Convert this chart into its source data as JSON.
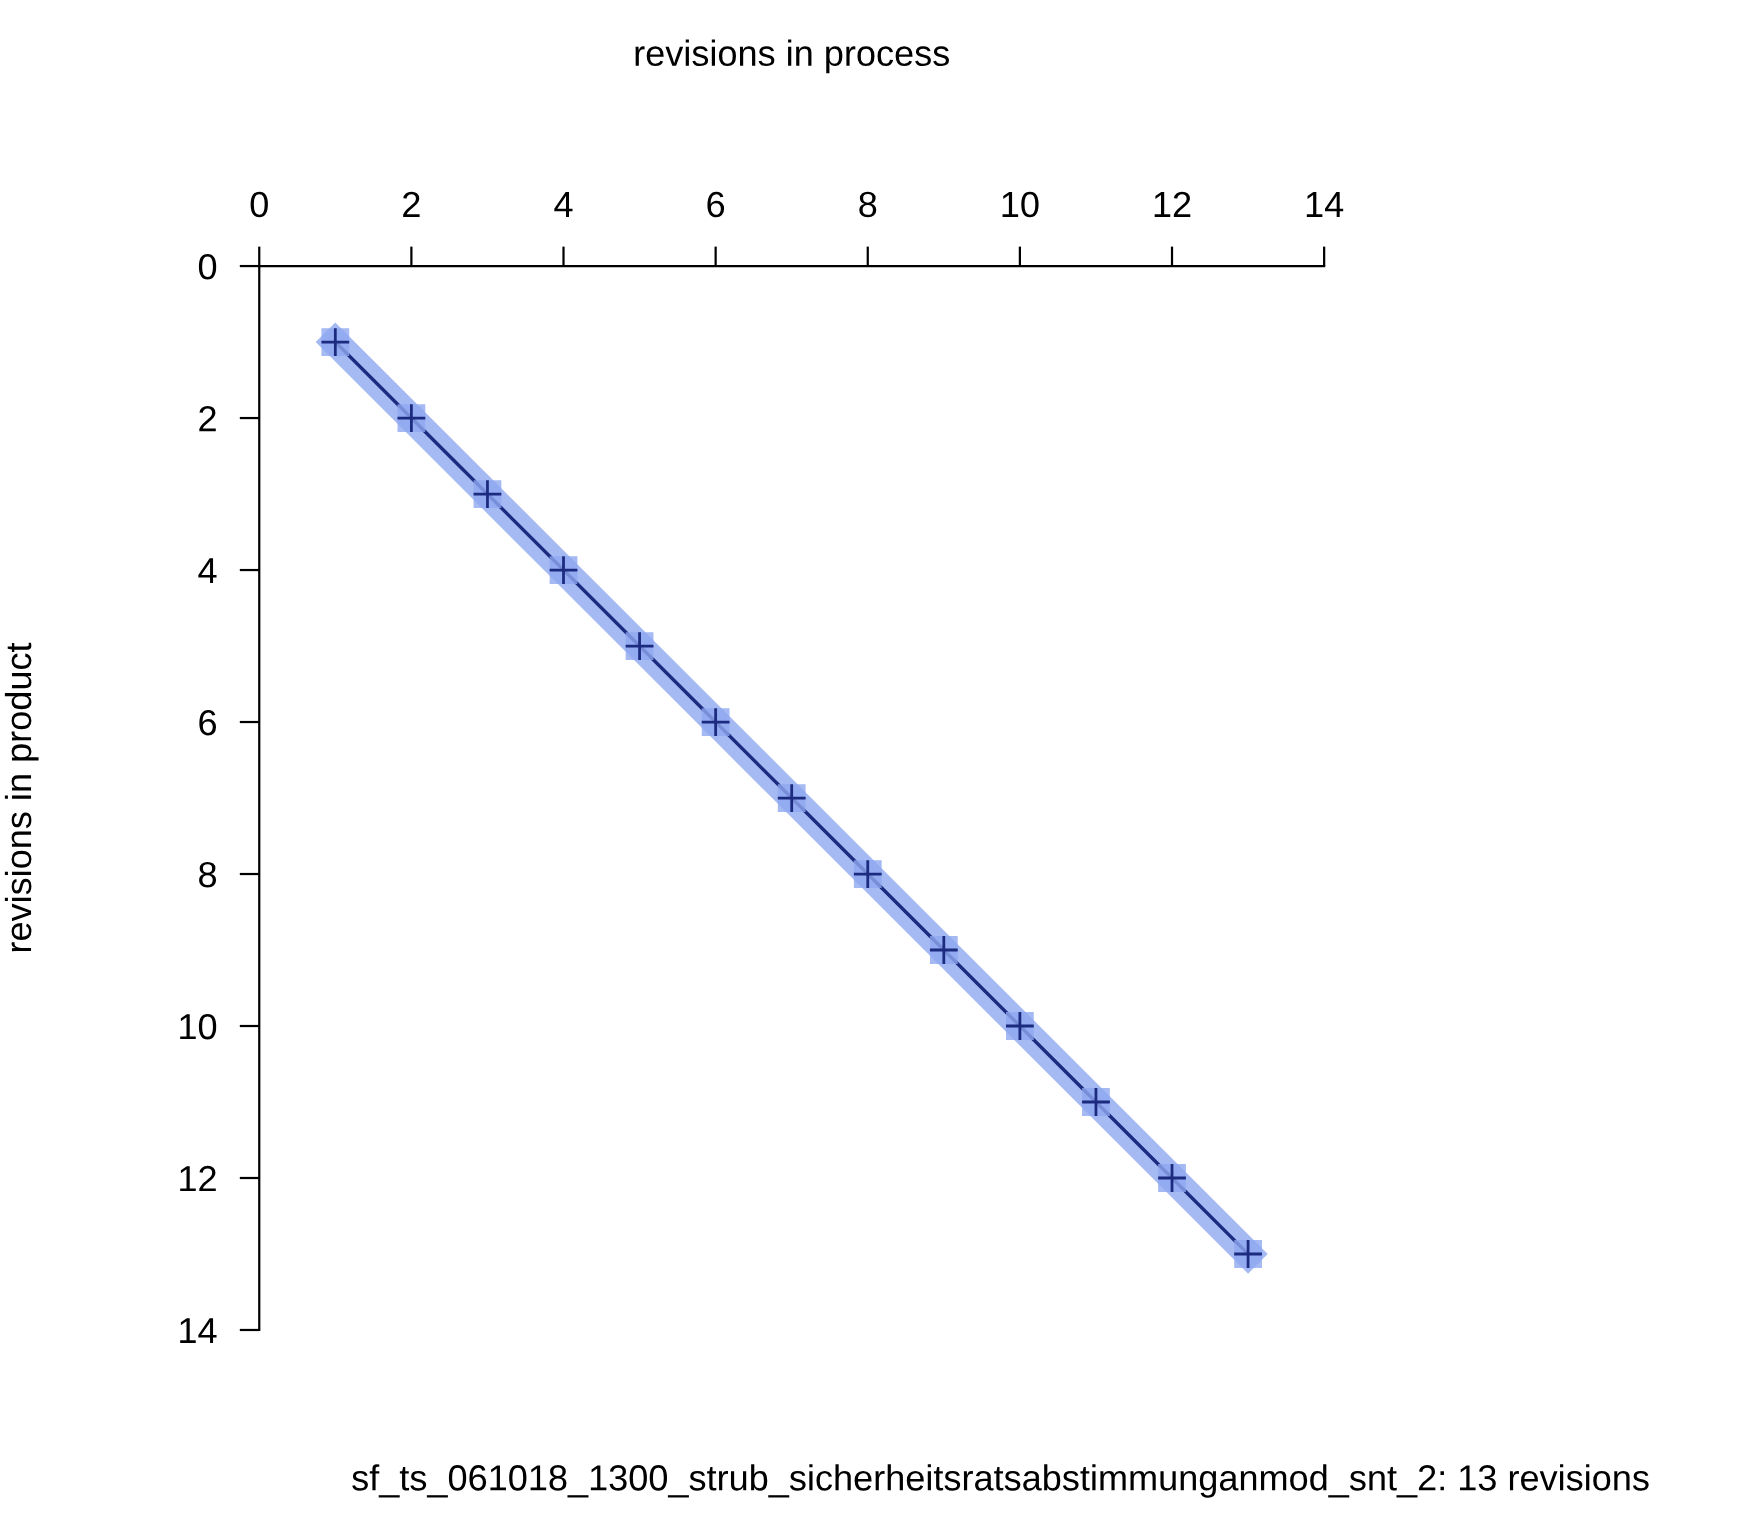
{
  "chart_data": {
    "type": "line",
    "xlabel": "revisions in process",
    "ylabel": "revisions in product",
    "annotations": [
      "sf_ts_061018_1300_strub_sicherheitsratsabstimmunganmod_snt_2: 13 revisions"
    ],
    "x": [
      1,
      2,
      3,
      4,
      5,
      6,
      7,
      8,
      9,
      10,
      11,
      12,
      13
    ],
    "series": [
      {
        "color": "#1c2a80",
        "values": [
          1,
          2,
          3,
          4,
          5,
          6,
          7,
          8,
          9,
          10,
          11,
          12,
          13
        ]
      }
    ],
    "xlim": [
      0,
      14
    ],
    "xticks": [
      0,
      2,
      4,
      6,
      8,
      10,
      12,
      14
    ],
    "ylim": [
      14,
      0
    ],
    "yticks": [
      0,
      2,
      4,
      6,
      8,
      10,
      12,
      14
    ],
    "grid": false,
    "legend": false,
    "marker": "cross",
    "line_style": "solid"
  }
}
